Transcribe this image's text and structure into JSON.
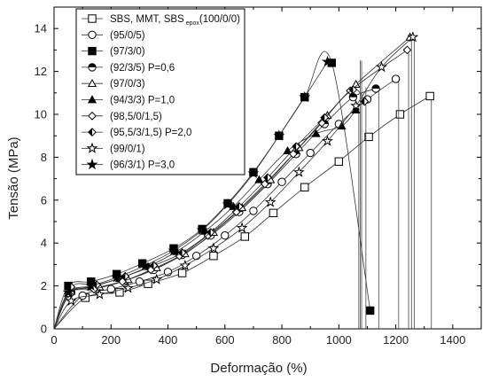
{
  "chart_data": {
    "type": "line",
    "xlabel": "Deformação (%)",
    "ylabel": "Tensão (MPa)",
    "xlim": [
      0,
      1500
    ],
    "ylim": [
      0,
      15
    ],
    "xticks": [
      0,
      200,
      400,
      600,
      800,
      1000,
      1200,
      1400
    ],
    "yticks": [
      0,
      2,
      4,
      6,
      8,
      10,
      12,
      14
    ],
    "grid": false,
    "legend_position": "top-left",
    "legend_first": {
      "main": "SBS, MMT, SBS",
      "sub": "epox",
      "tail": "(100/0/0)"
    },
    "series": [
      {
        "name": "",
        "marker": "square-open",
        "x": [
          0,
          110,
          230,
          330,
          450,
          560,
          670,
          770,
          880,
          1000,
          1105,
          1215,
          1320
        ],
        "y": [
          0,
          1.45,
          1.7,
          2.1,
          2.6,
          3.4,
          4.3,
          5.4,
          6.6,
          7.8,
          8.95,
          10.0,
          10.85
        ],
        "break_x": 1325
      },
      {
        "name": "(95/0/5)",
        "marker": "circle-open",
        "x": [
          0,
          100,
          200,
          300,
          400,
          500,
          600,
          700,
          800,
          900,
          1000,
          1100,
          1200
        ],
        "y": [
          0,
          1.55,
          1.85,
          2.2,
          2.65,
          3.4,
          4.35,
          5.5,
          6.85,
          8.2,
          9.55,
          10.7,
          11.65
        ],
        "break_x": 1210
      },
      {
        "name": "(97/3/0)",
        "marker": "square-filled",
        "x": [
          0,
          50,
          130,
          220,
          310,
          420,
          520,
          610,
          700,
          790,
          880,
          975,
          1110
        ],
        "y": [
          0,
          2.0,
          2.2,
          2.55,
          3.05,
          3.75,
          4.65,
          5.85,
          7.3,
          9.0,
          10.8,
          12.4,
          0.85
        ],
        "break_x": 1080
      },
      {
        "name": "(92/3/5) P=0,6",
        "marker": "circle-half",
        "x": [
          0,
          60,
          150,
          250,
          350,
          450,
          550,
          650,
          750,
          850,
          950,
          1050,
          1130
        ],
        "y": [
          0,
          1.7,
          1.9,
          2.25,
          2.75,
          3.45,
          4.35,
          5.45,
          6.75,
          8.15,
          9.55,
          10.8,
          11.2
        ],
        "break_x": 1140
      },
      {
        "name": "(97/0/3)",
        "marker": "triangle-open",
        "x": [
          0,
          60,
          160,
          260,
          360,
          460,
          560,
          660,
          760,
          860,
          960,
          1060,
          1250
        ],
        "y": [
          0,
          1.75,
          1.95,
          2.3,
          2.85,
          3.5,
          4.5,
          5.65,
          6.95,
          8.45,
          9.95,
          11.4,
          13.6
        ],
        "break_x": 1255
      },
      {
        "name": "(94/3/3) P=1,0",
        "marker": "triangle-filled",
        "x": [
          0,
          50,
          130,
          230,
          330,
          430,
          530,
          630,
          720,
          820,
          920,
          1010,
          1060
        ],
        "y": [
          0,
          1.65,
          1.95,
          2.35,
          2.9,
          3.6,
          4.55,
          5.7,
          6.95,
          8.3,
          9.1,
          9.45,
          10.2
        ],
        "break_x": 1070
      },
      {
        "name": "(98,5/0/1,5)",
        "marker": "diamond-open",
        "x": [
          0,
          50,
          140,
          240,
          340,
          440,
          540,
          640,
          740,
          840,
          940,
          1040,
          1240
        ],
        "y": [
          0,
          1.65,
          1.85,
          2.2,
          2.75,
          3.4,
          4.35,
          5.45,
          6.75,
          8.15,
          9.6,
          11.1,
          13.0
        ],
        "break_x": 1245
      },
      {
        "name": "(95,5/3/1,5) P=2,0",
        "marker": "diamond-half",
        "x": [
          0,
          60,
          150,
          250,
          350,
          450,
          550,
          650,
          750,
          850,
          950,
          1050,
          1090
        ],
        "y": [
          0,
          1.95,
          2.05,
          2.45,
          2.95,
          3.55,
          4.5,
          5.7,
          7.05,
          8.5,
          9.85,
          11.15,
          10.6
        ],
        "break_x": 1095
      },
      {
        "name": "(99/0/1)",
        "marker": "star-open",
        "x": [
          0,
          60,
          160,
          260,
          360,
          460,
          560,
          660,
          760,
          860,
          960,
          1060,
          1150,
          1260
        ],
        "y": [
          0,
          1.3,
          1.6,
          1.9,
          2.3,
          2.95,
          3.75,
          4.7,
          5.9,
          7.3,
          8.75,
          10.4,
          12.2,
          13.6
        ],
        "break_x": 1265
      },
      {
        "name": "(96/3/1) P=3,0",
        "marker": "star-filled",
        "x": [
          0,
          50,
          130,
          220,
          320,
          420,
          520,
          610,
          700,
          790,
          880,
          960
        ],
        "y": [
          0,
          1.7,
          2.0,
          2.4,
          2.95,
          3.65,
          4.6,
          5.8,
          7.25,
          9.0,
          10.8,
          12.45
        ],
        "break_x": 1075
      }
    ]
  }
}
